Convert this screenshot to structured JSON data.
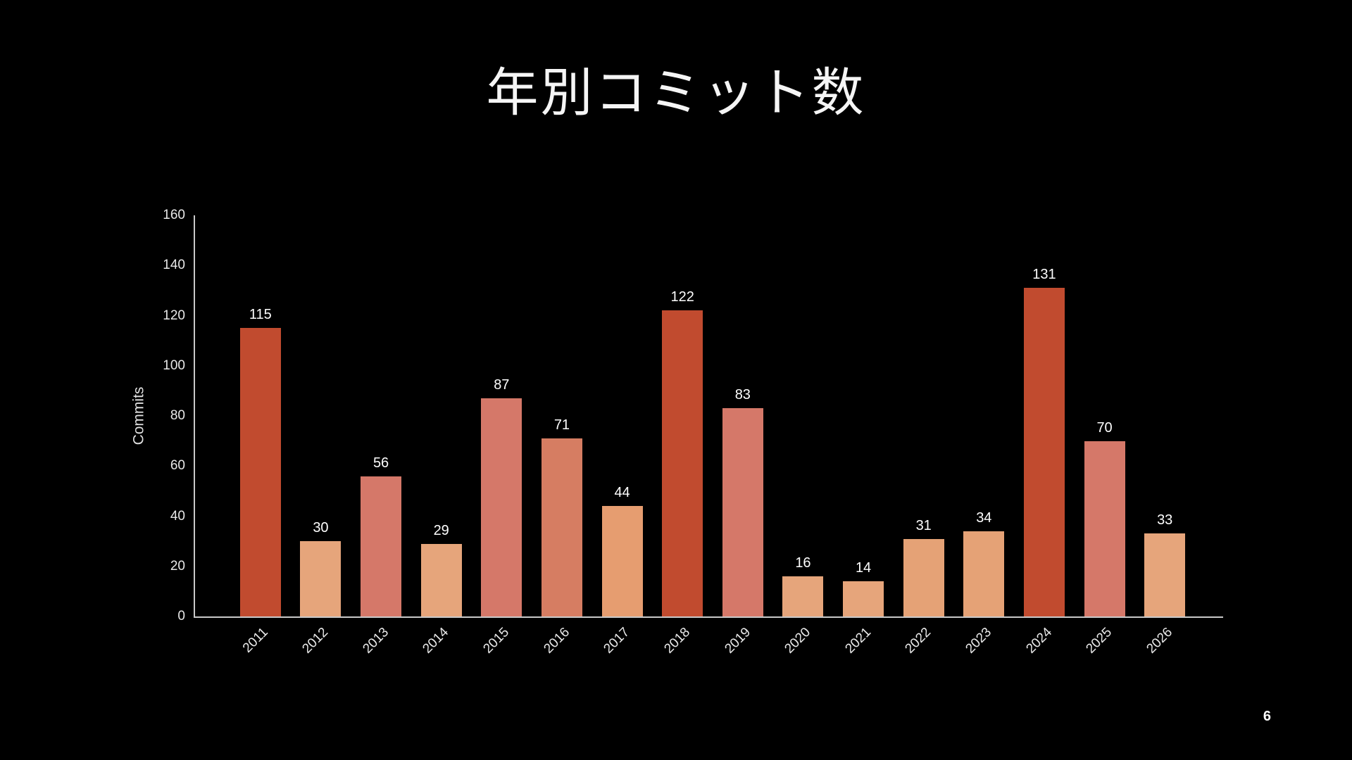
{
  "slide": {
    "title": "年別コミット数",
    "page_number": "6"
  },
  "chart_data": {
    "type": "bar",
    "title": "年別コミット数",
    "categories": [
      "2011",
      "2012",
      "2013",
      "2014",
      "2015",
      "2016",
      "2017",
      "2018",
      "2019",
      "2020",
      "2021",
      "2022",
      "2023",
      "2024",
      "2025",
      "2026"
    ],
    "values": [
      115,
      30,
      56,
      29,
      87,
      71,
      44,
      122,
      83,
      16,
      14,
      31,
      34,
      131,
      70,
      33
    ],
    "bar_colors": [
      "#c14b2f",
      "#e6a57b",
      "#d57869",
      "#e6a57b",
      "#d57869",
      "#d67d62",
      "#e69d70",
      "#c14b2f",
      "#d57869",
      "#e6a57b",
      "#e6a57b",
      "#e5a276",
      "#e5a276",
      "#c14b2f",
      "#d57869",
      "#e6a57b"
    ],
    "xlabel": "",
    "ylabel": "Commits",
    "ylim": [
      0,
      160
    ],
    "yticks": [
      0,
      20,
      40,
      60,
      80,
      100,
      120,
      140,
      160
    ],
    "grid": false,
    "legend": "none",
    "background": "#000000",
    "axis_color": "#c9c9c9",
    "label_color": "#ffffff"
  }
}
